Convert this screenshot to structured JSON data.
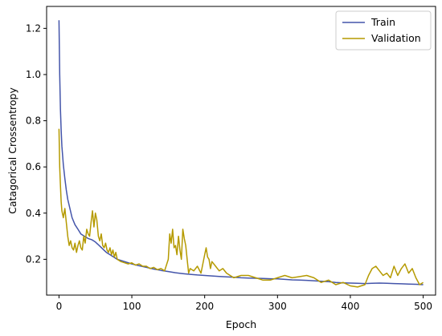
{
  "chart_data": {
    "type": "line",
    "title": "",
    "xlabel": "Epoch",
    "ylabel": "Catagorical Crossentropy",
    "xlim": [
      -17,
      517
    ],
    "ylim": [
      0.045,
      1.295
    ],
    "xticks": [
      0,
      100,
      200,
      300,
      400,
      500
    ],
    "yticks": [
      0.2,
      0.4,
      0.6,
      0.8,
      1.0,
      1.2
    ],
    "xtick_labels": [
      "0",
      "100",
      "200",
      "300",
      "400",
      "500"
    ],
    "ytick_labels": [
      "0.2",
      "0.4",
      "0.6",
      "0.8",
      "1.0",
      "1.2"
    ],
    "grid": false,
    "legend_position": "top-right",
    "series": [
      {
        "name": "Train",
        "color": "#4455aa",
        "x": [
          0,
          1,
          2,
          3,
          4,
          6,
          8,
          10,
          12,
          15,
          18,
          22,
          26,
          30,
          35,
          40,
          45,
          50,
          55,
          60,
          65,
          70,
          75,
          80,
          90,
          100,
          110,
          120,
          130,
          140,
          150,
          160,
          170,
          180,
          190,
          200,
          210,
          220,
          230,
          240,
          250,
          260,
          270,
          280,
          290,
          300,
          310,
          320,
          330,
          340,
          350,
          360,
          370,
          380,
          390,
          400,
          410,
          420,
          430,
          440,
          450,
          460,
          470,
          480,
          490,
          500
        ],
        "y": [
          1.235,
          1.0,
          0.85,
          0.76,
          0.69,
          0.61,
          0.55,
          0.5,
          0.46,
          0.42,
          0.38,
          0.35,
          0.33,
          0.31,
          0.3,
          0.29,
          0.285,
          0.275,
          0.26,
          0.245,
          0.23,
          0.22,
          0.21,
          0.2,
          0.19,
          0.18,
          0.172,
          0.165,
          0.158,
          0.152,
          0.147,
          0.142,
          0.138,
          0.135,
          0.132,
          0.13,
          0.128,
          0.126,
          0.124,
          0.122,
          0.12,
          0.119,
          0.118,
          0.117,
          0.116,
          0.115,
          0.113,
          0.111,
          0.11,
          0.109,
          0.107,
          0.105,
          0.103,
          0.1,
          0.098,
          0.097,
          0.096,
          0.095,
          0.096,
          0.097,
          0.096,
          0.095,
          0.094,
          0.093,
          0.092,
          0.09
        ]
      },
      {
        "name": "Validation",
        "color": "#b59a00",
        "x": [
          0,
          1,
          2,
          3,
          4,
          6,
          8,
          10,
          12,
          14,
          16,
          18,
          20,
          22,
          24,
          26,
          28,
          30,
          32,
          34,
          36,
          38,
          40,
          42,
          44,
          46,
          48,
          50,
          52,
          54,
          56,
          58,
          60,
          62,
          64,
          66,
          68,
          70,
          72,
          74,
          76,
          78,
          80,
          85,
          90,
          95,
          100,
          105,
          110,
          115,
          120,
          125,
          130,
          135,
          140,
          145,
          150,
          152,
          154,
          156,
          158,
          160,
          162,
          164,
          166,
          168,
          170,
          172,
          174,
          176,
          178,
          180,
          185,
          190,
          195,
          200,
          202,
          204,
          206,
          208,
          210,
          215,
          220,
          225,
          230,
          240,
          250,
          260,
          270,
          280,
          290,
          300,
          310,
          320,
          330,
          340,
          350,
          360,
          370,
          380,
          390,
          400,
          410,
          420,
          425,
          430,
          435,
          440,
          445,
          450,
          455,
          460,
          465,
          470,
          475,
          480,
          485,
          490,
          495,
          500
        ],
        "y": [
          0.765,
          0.6,
          0.52,
          0.45,
          0.41,
          0.38,
          0.42,
          0.36,
          0.3,
          0.26,
          0.28,
          0.25,
          0.24,
          0.27,
          0.23,
          0.26,
          0.28,
          0.25,
          0.24,
          0.3,
          0.27,
          0.33,
          0.31,
          0.3,
          0.36,
          0.41,
          0.34,
          0.4,
          0.37,
          0.3,
          0.28,
          0.31,
          0.26,
          0.25,
          0.27,
          0.24,
          0.23,
          0.25,
          0.22,
          0.24,
          0.21,
          0.23,
          0.2,
          0.19,
          0.185,
          0.18,
          0.185,
          0.175,
          0.18,
          0.17,
          0.17,
          0.16,
          0.165,
          0.155,
          0.16,
          0.15,
          0.2,
          0.31,
          0.27,
          0.33,
          0.25,
          0.26,
          0.22,
          0.3,
          0.24,
          0.2,
          0.33,
          0.29,
          0.26,
          0.2,
          0.14,
          0.16,
          0.15,
          0.17,
          0.14,
          0.22,
          0.25,
          0.21,
          0.2,
          0.16,
          0.19,
          0.17,
          0.15,
          0.16,
          0.14,
          0.12,
          0.13,
          0.13,
          0.12,
          0.11,
          0.11,
          0.12,
          0.13,
          0.12,
          0.125,
          0.13,
          0.12,
          0.1,
          0.11,
          0.09,
          0.1,
          0.085,
          0.08,
          0.09,
          0.13,
          0.16,
          0.17,
          0.15,
          0.13,
          0.14,
          0.12,
          0.17,
          0.13,
          0.16,
          0.18,
          0.14,
          0.16,
          0.12,
          0.09,
          0.1
        ]
      }
    ]
  }
}
